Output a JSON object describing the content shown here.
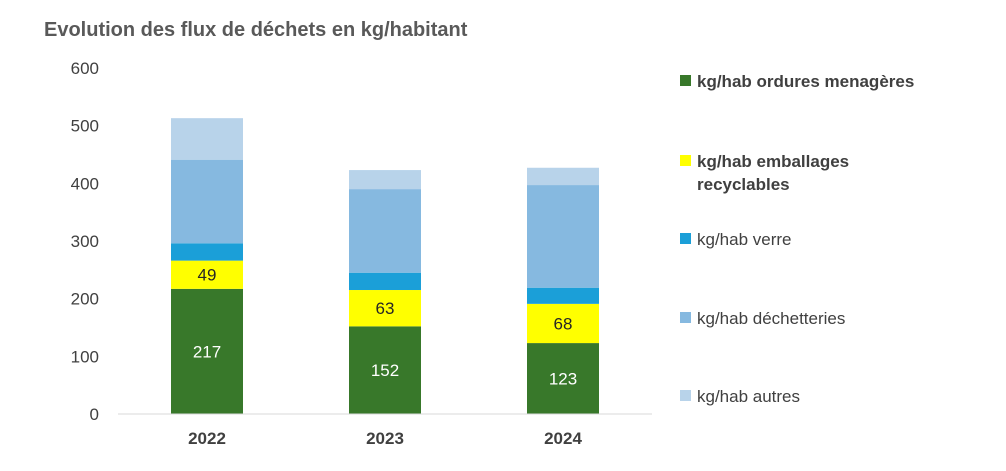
{
  "chart_data": {
    "type": "stacked-bar",
    "title": "Evolution des flux de déchets en kg/habitant",
    "categories": [
      "2022",
      "2023",
      "2024"
    ],
    "ylim": [
      0,
      600
    ],
    "yticks": [
      0,
      100,
      200,
      300,
      400,
      500,
      600
    ],
    "series": [
      {
        "name": "kg/hab ordures menagères",
        "color": "#38782A",
        "label_color": "#ffffff",
        "values": [
          217,
          152,
          123
        ],
        "show_labels": true,
        "legend_bold": true
      },
      {
        "name": "kg/hab emballages recyclables",
        "color": "#FFFF00",
        "label_color": "#262626",
        "values": [
          49,
          63,
          68
        ],
        "show_labels": true,
        "legend_bold": true
      },
      {
        "name": "kg/hab verre",
        "color": "#1B9FD8",
        "label_color": "#262626",
        "values": [
          30,
          30,
          28
        ],
        "show_labels": false,
        "legend_bold": false
      },
      {
        "name": "kg/hab déchetteries",
        "color": "#86B9E0",
        "label_color": "#262626",
        "values": [
          145,
          145,
          178
        ],
        "show_labels": false,
        "legend_bold": false
      },
      {
        "name": "kg/hab autres",
        "color": "#B8D3EA",
        "label_color": "#262626",
        "values": [
          72,
          33,
          30
        ],
        "show_labels": false,
        "legend_bold": false
      }
    ],
    "legend_position": "right"
  }
}
